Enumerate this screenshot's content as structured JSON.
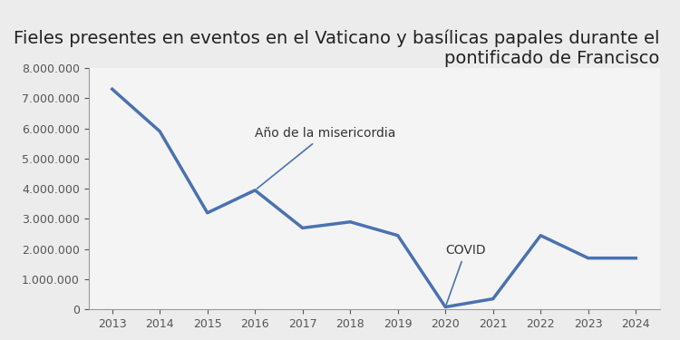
{
  "chart_data": {
    "type": "line",
    "title": "Fieles presentes en eventos en el Vaticano y basílicas papales durante el pontificado de Francisco",
    "categories": [
      "2013",
      "2014",
      "2015",
      "2016",
      "2017",
      "2018",
      "2019",
      "2020",
      "2021",
      "2022",
      "2023",
      "2024"
    ],
    "values": [
      7300000,
      5900000,
      3200000,
      3950000,
      2700000,
      2900000,
      2450000,
      80000,
      350000,
      2450000,
      1700000,
      1700000
    ],
    "color": "#4a72b0",
    "ylim": [
      0,
      8000000
    ],
    "yticks": [
      {
        "value": 0,
        "label": "0"
      },
      {
        "value": 1000000,
        "label": "1.000.000"
      },
      {
        "value": 2000000,
        "label": "2.000.000"
      },
      {
        "value": 3000000,
        "label": "3.000.000"
      },
      {
        "value": 4000000,
        "label": "4.000.000"
      },
      {
        "value": 5000000,
        "label": "5.000.000"
      },
      {
        "value": 6000000,
        "label": "6.000.000"
      },
      {
        "value": 7000000,
        "label": "7.000.000"
      },
      {
        "value": 8000000,
        "label": "8.000.000"
      }
    ],
    "grid": false,
    "annotations": [
      {
        "text": "Año de la misericordia",
        "x": "2016"
      },
      {
        "text": "COVID",
        "x": "2020"
      }
    ]
  }
}
